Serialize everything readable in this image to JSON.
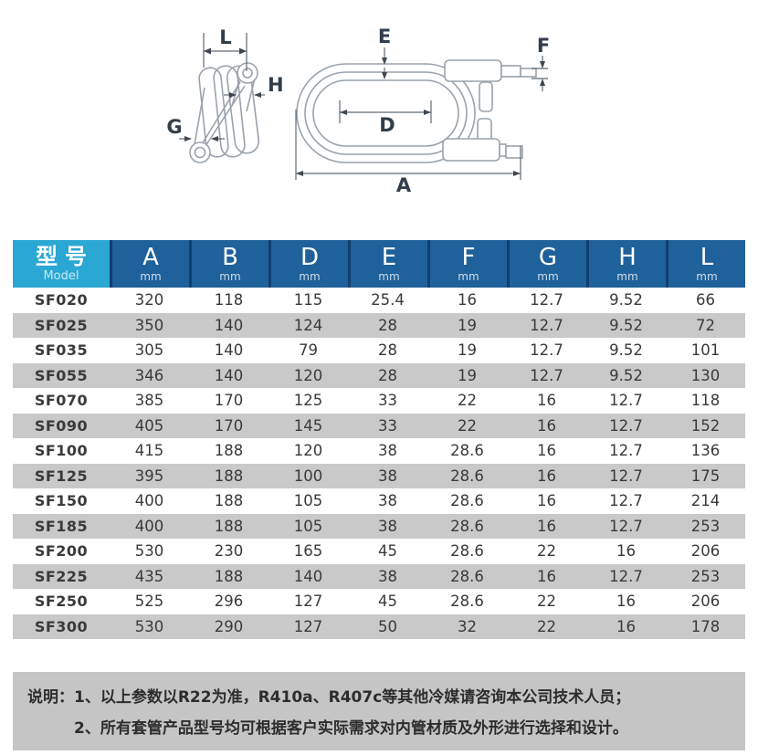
{
  "diagram": {
    "side_view": {
      "labels": {
        "L": "L",
        "H": "H",
        "G": "G"
      }
    },
    "front_view": {
      "labels": {
        "E": "E",
        "F": "F",
        "D": "D",
        "A": "A"
      }
    }
  },
  "table": {
    "model_header": {
      "title": "型号",
      "subtitle": "Model"
    },
    "columns": [
      {
        "letter": "A",
        "unit": "mm"
      },
      {
        "letter": "B",
        "unit": "mm"
      },
      {
        "letter": "D",
        "unit": "mm"
      },
      {
        "letter": "E",
        "unit": "mm"
      },
      {
        "letter": "F",
        "unit": "mm"
      },
      {
        "letter": "G",
        "unit": "mm"
      },
      {
        "letter": "H",
        "unit": "mm"
      },
      {
        "letter": "L",
        "unit": "mm"
      }
    ],
    "rows": [
      {
        "model": "SF020",
        "values": [
          "320",
          "118",
          "115",
          "25.4",
          "16",
          "12.7",
          "9.52",
          "66"
        ]
      },
      {
        "model": "SF025",
        "values": [
          "350",
          "140",
          "124",
          "28",
          "19",
          "12.7",
          "9.52",
          "72"
        ]
      },
      {
        "model": "SF035",
        "values": [
          "305",
          "140",
          "79",
          "28",
          "19",
          "12.7",
          "9.52",
          "101"
        ]
      },
      {
        "model": "SF055",
        "values": [
          "346",
          "140",
          "120",
          "28",
          "19",
          "12.7",
          "9.52",
          "130"
        ]
      },
      {
        "model": "SF070",
        "values": [
          "385",
          "170",
          "125",
          "33",
          "22",
          "16",
          "12.7",
          "118"
        ]
      },
      {
        "model": "SF090",
        "values": [
          "405",
          "170",
          "145",
          "33",
          "22",
          "16",
          "12.7",
          "152"
        ]
      },
      {
        "model": "SF100",
        "values": [
          "415",
          "188",
          "120",
          "38",
          "28.6",
          "16",
          "12.7",
          "136"
        ]
      },
      {
        "model": "SF125",
        "values": [
          "395",
          "188",
          "100",
          "38",
          "28.6",
          "16",
          "12.7",
          "175"
        ]
      },
      {
        "model": "SF150",
        "values": [
          "400",
          "188",
          "105",
          "38",
          "28.6",
          "16",
          "12.7",
          "214"
        ]
      },
      {
        "model": "SF185",
        "values": [
          "400",
          "188",
          "105",
          "38",
          "28.6",
          "16",
          "12.7",
          "253"
        ]
      },
      {
        "model": "SF200",
        "values": [
          "530",
          "230",
          "165",
          "45",
          "28.6",
          "22",
          "16",
          "206"
        ]
      },
      {
        "model": "SF225",
        "values": [
          "435",
          "188",
          "140",
          "38",
          "28.6",
          "16",
          "12.7",
          "253"
        ]
      },
      {
        "model": "SF250",
        "values": [
          "525",
          "296",
          "127",
          "45",
          "28.6",
          "22",
          "16",
          "206"
        ]
      },
      {
        "model": "SF300",
        "values": [
          "530",
          "290",
          "127",
          "50",
          "32",
          "22",
          "16",
          "178"
        ]
      }
    ]
  },
  "notes": {
    "label": "说明：",
    "lines": [
      "1、以上参数以R22为准，R410a、R407c等其他冷媒请咨询本公司技术人员；",
      "2、所有套管产品型号均可根据客户实际需求对内管材质及外形进行选择和设计。"
    ]
  },
  "colors": {
    "header_cyan": "#2BA7D3",
    "header_blue": "#1F619A",
    "header_sep": "#123E6E",
    "header_text": "#FFFFFF",
    "row_alt": "#C9C9C9",
    "note_bg": "#C5C5C5",
    "text_dark": "#3A3A3A",
    "diagram_line": "#9AA3AC",
    "dim_line": "#5F6A74",
    "label_color": "#323E4A"
  }
}
